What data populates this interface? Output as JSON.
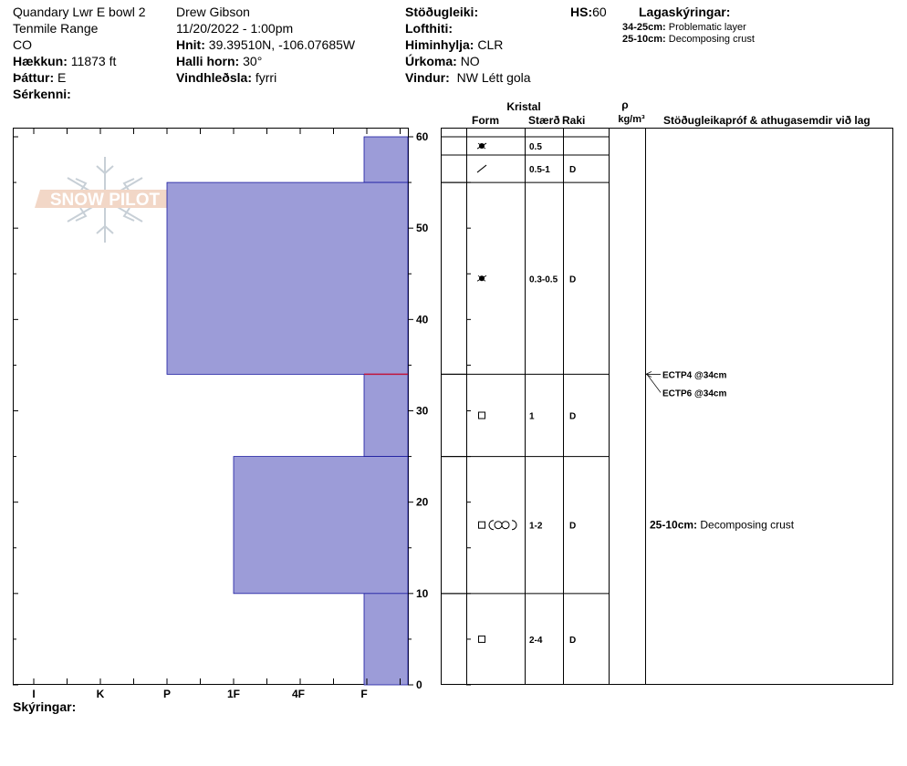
{
  "header": {
    "col1": {
      "location": "Quandary Lwr E bowl 2",
      "range": "Tenmile Range",
      "state": "CO",
      "elevation_label": "Hækkun:",
      "elevation_value": "11873 ft",
      "aspect_label": "Þáttur:",
      "aspect_value": "E",
      "features_label": "Sérkenni:"
    },
    "col2": {
      "observer": "Drew Gibson",
      "datetime": "11/20/2022 - 1:00pm",
      "coords_label": "Hnit:",
      "coords_value": "39.39510N, -106.07685W",
      "slope_label": "Halli horn:",
      "slope_value": "30°",
      "wind_loading_label": "Vindhleðsla:",
      "wind_loading_value": "fyrri"
    },
    "col3": {
      "stability_label": "Stöðugleiki:",
      "air_temp_label": "Lofthiti:",
      "sky_label": "Himinhylja:",
      "sky_value": "CLR",
      "precip_label": "Úrkoma:",
      "precip_value": "NO",
      "wind_label": "Vindur:",
      "wind_value": "NW Létt gola"
    },
    "hs_label": "HS:",
    "hs_value": "60",
    "legend_title": "Lagaskýringar:",
    "legend": [
      {
        "range": "34-25cm:",
        "text": "Problematic layer"
      },
      {
        "range": "25-10cm:",
        "text": "Decomposing crust"
      }
    ]
  },
  "logo_text": "SNOW PILOT",
  "footer_label": "Skýringar:",
  "columns": {
    "crystal": "Kristal",
    "form": "Form",
    "size": "Stærð",
    "moisture": "Raki",
    "density_symbol": "ρ",
    "density_unit": "kg/m³",
    "comments": "Stöðugleikapróf & athugasemdir við lag"
  },
  "chart_data": {
    "type": "bar",
    "orientation": "horizontal",
    "title": "",
    "x_axis_label": "",
    "y_axis_label": "",
    "x_categories": [
      "I",
      "K",
      "P",
      "1F",
      "4F",
      "F"
    ],
    "x_direction": "reversed (F at right edge, I at left)",
    "y_range_cm": [
      0,
      60
    ],
    "y_ticks": [
      0,
      10,
      20,
      30,
      40,
      50,
      60
    ],
    "series": [
      {
        "hardness_profile": [
          {
            "top": 60,
            "bottom": 55,
            "hardness": "F"
          },
          {
            "top": 55,
            "bottom": 34,
            "hardness": "P"
          },
          {
            "top": 34,
            "bottom": 25,
            "hardness": "F"
          },
          {
            "top": 25,
            "bottom": 10,
            "hardness": "1F"
          },
          {
            "top": 10,
            "bottom": 0,
            "hardness": "F"
          }
        ]
      }
    ],
    "problem_interface_cm": 34,
    "layers": [
      {
        "top": 60,
        "bottom": 58,
        "form": "star",
        "size": "0.5",
        "moisture": ""
      },
      {
        "top": 58,
        "bottom": 55,
        "form": "slash",
        "size": "0.5-1",
        "moisture": "D"
      },
      {
        "top": 55,
        "bottom": 34,
        "form": "star",
        "size": "0.3-0.5",
        "moisture": "D"
      },
      {
        "top": 34,
        "bottom": 25,
        "form": "square",
        "size": "1",
        "moisture": "D"
      },
      {
        "top": 25,
        "bottom": 10,
        "form": "square-crust",
        "size": "1-2",
        "moisture": "D"
      },
      {
        "top": 10,
        "bottom": 0,
        "form": "square",
        "size": "2-4",
        "moisture": "D"
      }
    ],
    "tests": [
      {
        "label": "ECTP4 @34cm",
        "depth": 34
      },
      {
        "label": "ECTP6 @34cm",
        "depth": 34
      }
    ],
    "layer_comments": [
      {
        "range": "25-10cm:",
        "text": "Decomposing crust",
        "depth": 17.5
      }
    ]
  }
}
